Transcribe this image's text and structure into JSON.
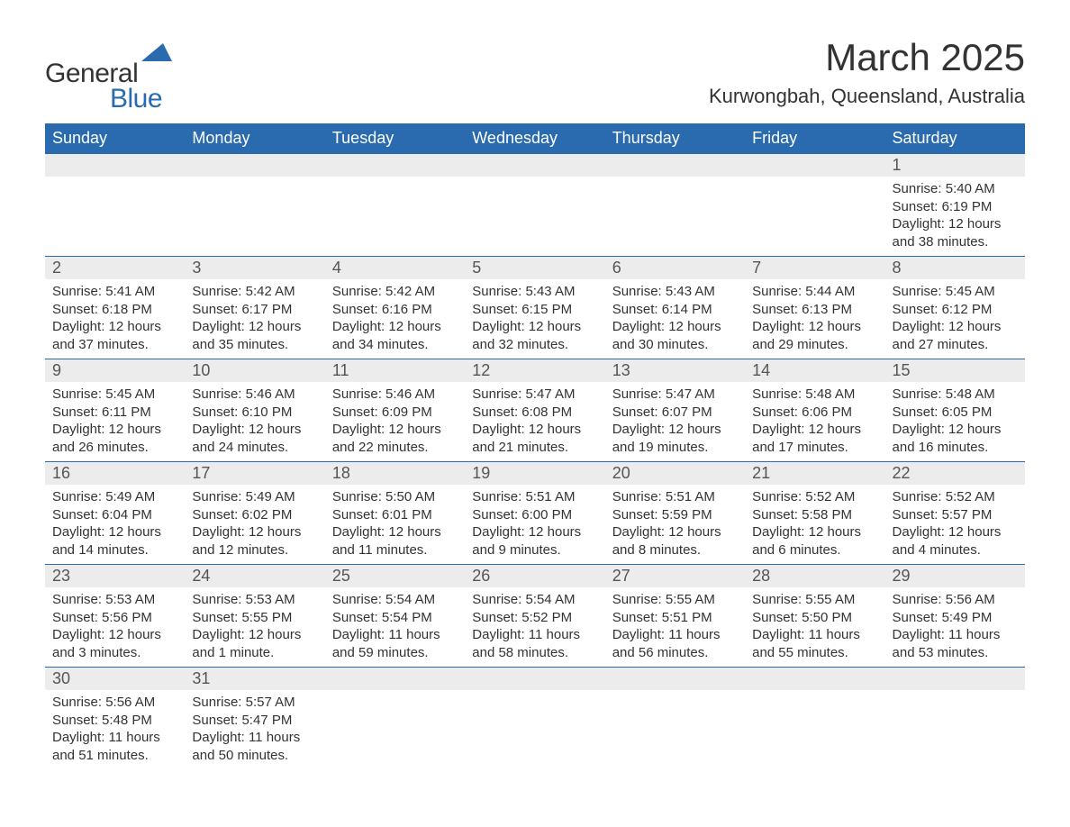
{
  "logo": {
    "text1": "General",
    "text2": "Blue",
    "shape_color": "#2a6bb0"
  },
  "header": {
    "month_title": "March 2025",
    "location": "Kurwongbah, Queensland, Australia"
  },
  "calendar": {
    "header_bg": "#2a6bb0",
    "header_fg": "#ffffff",
    "daynum_bg": "#ececec",
    "border_color": "#2a6bb0",
    "days_of_week": [
      "Sunday",
      "Monday",
      "Tuesday",
      "Wednesday",
      "Thursday",
      "Friday",
      "Saturday"
    ],
    "weeks": [
      [
        {
          "blank": true
        },
        {
          "blank": true
        },
        {
          "blank": true
        },
        {
          "blank": true
        },
        {
          "blank": true
        },
        {
          "blank": true
        },
        {
          "n": "1",
          "sunrise": "Sunrise: 5:40 AM",
          "sunset": "Sunset: 6:19 PM",
          "daylight1": "Daylight: 12 hours",
          "daylight2": "and 38 minutes."
        }
      ],
      [
        {
          "n": "2",
          "sunrise": "Sunrise: 5:41 AM",
          "sunset": "Sunset: 6:18 PM",
          "daylight1": "Daylight: 12 hours",
          "daylight2": "and 37 minutes."
        },
        {
          "n": "3",
          "sunrise": "Sunrise: 5:42 AM",
          "sunset": "Sunset: 6:17 PM",
          "daylight1": "Daylight: 12 hours",
          "daylight2": "and 35 minutes."
        },
        {
          "n": "4",
          "sunrise": "Sunrise: 5:42 AM",
          "sunset": "Sunset: 6:16 PM",
          "daylight1": "Daylight: 12 hours",
          "daylight2": "and 34 minutes."
        },
        {
          "n": "5",
          "sunrise": "Sunrise: 5:43 AM",
          "sunset": "Sunset: 6:15 PM",
          "daylight1": "Daylight: 12 hours",
          "daylight2": "and 32 minutes."
        },
        {
          "n": "6",
          "sunrise": "Sunrise: 5:43 AM",
          "sunset": "Sunset: 6:14 PM",
          "daylight1": "Daylight: 12 hours",
          "daylight2": "and 30 minutes."
        },
        {
          "n": "7",
          "sunrise": "Sunrise: 5:44 AM",
          "sunset": "Sunset: 6:13 PM",
          "daylight1": "Daylight: 12 hours",
          "daylight2": "and 29 minutes."
        },
        {
          "n": "8",
          "sunrise": "Sunrise: 5:45 AM",
          "sunset": "Sunset: 6:12 PM",
          "daylight1": "Daylight: 12 hours",
          "daylight2": "and 27 minutes."
        }
      ],
      [
        {
          "n": "9",
          "sunrise": "Sunrise: 5:45 AM",
          "sunset": "Sunset: 6:11 PM",
          "daylight1": "Daylight: 12 hours",
          "daylight2": "and 26 minutes."
        },
        {
          "n": "10",
          "sunrise": "Sunrise: 5:46 AM",
          "sunset": "Sunset: 6:10 PM",
          "daylight1": "Daylight: 12 hours",
          "daylight2": "and 24 minutes."
        },
        {
          "n": "11",
          "sunrise": "Sunrise: 5:46 AM",
          "sunset": "Sunset: 6:09 PM",
          "daylight1": "Daylight: 12 hours",
          "daylight2": "and 22 minutes."
        },
        {
          "n": "12",
          "sunrise": "Sunrise: 5:47 AM",
          "sunset": "Sunset: 6:08 PM",
          "daylight1": "Daylight: 12 hours",
          "daylight2": "and 21 minutes."
        },
        {
          "n": "13",
          "sunrise": "Sunrise: 5:47 AM",
          "sunset": "Sunset: 6:07 PM",
          "daylight1": "Daylight: 12 hours",
          "daylight2": "and 19 minutes."
        },
        {
          "n": "14",
          "sunrise": "Sunrise: 5:48 AM",
          "sunset": "Sunset: 6:06 PM",
          "daylight1": "Daylight: 12 hours",
          "daylight2": "and 17 minutes."
        },
        {
          "n": "15",
          "sunrise": "Sunrise: 5:48 AM",
          "sunset": "Sunset: 6:05 PM",
          "daylight1": "Daylight: 12 hours",
          "daylight2": "and 16 minutes."
        }
      ],
      [
        {
          "n": "16",
          "sunrise": "Sunrise: 5:49 AM",
          "sunset": "Sunset: 6:04 PM",
          "daylight1": "Daylight: 12 hours",
          "daylight2": "and 14 minutes."
        },
        {
          "n": "17",
          "sunrise": "Sunrise: 5:49 AM",
          "sunset": "Sunset: 6:02 PM",
          "daylight1": "Daylight: 12 hours",
          "daylight2": "and 12 minutes."
        },
        {
          "n": "18",
          "sunrise": "Sunrise: 5:50 AM",
          "sunset": "Sunset: 6:01 PM",
          "daylight1": "Daylight: 12 hours",
          "daylight2": "and 11 minutes."
        },
        {
          "n": "19",
          "sunrise": "Sunrise: 5:51 AM",
          "sunset": "Sunset: 6:00 PM",
          "daylight1": "Daylight: 12 hours",
          "daylight2": "and 9 minutes."
        },
        {
          "n": "20",
          "sunrise": "Sunrise: 5:51 AM",
          "sunset": "Sunset: 5:59 PM",
          "daylight1": "Daylight: 12 hours",
          "daylight2": "and 8 minutes."
        },
        {
          "n": "21",
          "sunrise": "Sunrise: 5:52 AM",
          "sunset": "Sunset: 5:58 PM",
          "daylight1": "Daylight: 12 hours",
          "daylight2": "and 6 minutes."
        },
        {
          "n": "22",
          "sunrise": "Sunrise: 5:52 AM",
          "sunset": "Sunset: 5:57 PM",
          "daylight1": "Daylight: 12 hours",
          "daylight2": "and 4 minutes."
        }
      ],
      [
        {
          "n": "23",
          "sunrise": "Sunrise: 5:53 AM",
          "sunset": "Sunset: 5:56 PM",
          "daylight1": "Daylight: 12 hours",
          "daylight2": "and 3 minutes."
        },
        {
          "n": "24",
          "sunrise": "Sunrise: 5:53 AM",
          "sunset": "Sunset: 5:55 PM",
          "daylight1": "Daylight: 12 hours",
          "daylight2": "and 1 minute."
        },
        {
          "n": "25",
          "sunrise": "Sunrise: 5:54 AM",
          "sunset": "Sunset: 5:54 PM",
          "daylight1": "Daylight: 11 hours",
          "daylight2": "and 59 minutes."
        },
        {
          "n": "26",
          "sunrise": "Sunrise: 5:54 AM",
          "sunset": "Sunset: 5:52 PM",
          "daylight1": "Daylight: 11 hours",
          "daylight2": "and 58 minutes."
        },
        {
          "n": "27",
          "sunrise": "Sunrise: 5:55 AM",
          "sunset": "Sunset: 5:51 PM",
          "daylight1": "Daylight: 11 hours",
          "daylight2": "and 56 minutes."
        },
        {
          "n": "28",
          "sunrise": "Sunrise: 5:55 AM",
          "sunset": "Sunset: 5:50 PM",
          "daylight1": "Daylight: 11 hours",
          "daylight2": "and 55 minutes."
        },
        {
          "n": "29",
          "sunrise": "Sunrise: 5:56 AM",
          "sunset": "Sunset: 5:49 PM",
          "daylight1": "Daylight: 11 hours",
          "daylight2": "and 53 minutes."
        }
      ],
      [
        {
          "n": "30",
          "sunrise": "Sunrise: 5:56 AM",
          "sunset": "Sunset: 5:48 PM",
          "daylight1": "Daylight: 11 hours",
          "daylight2": "and 51 minutes."
        },
        {
          "n": "31",
          "sunrise": "Sunrise: 5:57 AM",
          "sunset": "Sunset: 5:47 PM",
          "daylight1": "Daylight: 11 hours",
          "daylight2": "and 50 minutes."
        },
        {
          "blank": true
        },
        {
          "blank": true
        },
        {
          "blank": true
        },
        {
          "blank": true
        },
        {
          "blank": true
        }
      ]
    ]
  }
}
